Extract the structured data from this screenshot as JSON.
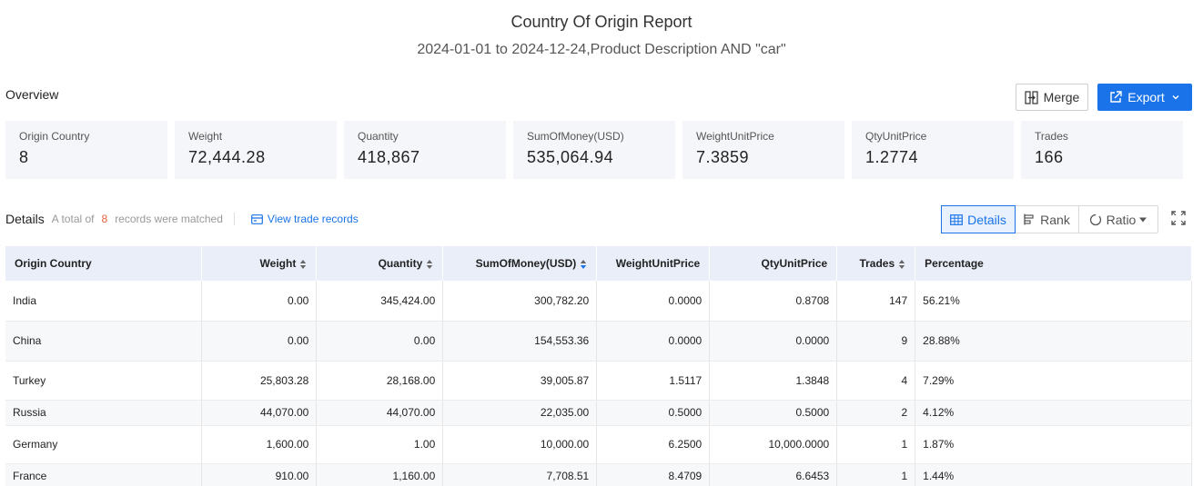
{
  "header": {
    "title": "Country Of Origin Report",
    "subtitle": "2024-01-01 to 2024-12-24,Product Description AND \"car\""
  },
  "overview": {
    "label": "Overview",
    "merge_label": "Merge",
    "export_label": "Export",
    "cards": [
      {
        "label": "Origin Country",
        "value": "8"
      },
      {
        "label": "Weight",
        "value": "72,444.28"
      },
      {
        "label": "Quantity",
        "value": "418,867"
      },
      {
        "label": "SumOfMoney(USD)",
        "value": "535,064.94"
      },
      {
        "label": "WeightUnitPrice",
        "value": "7.3859"
      },
      {
        "label": "QtyUnitPrice",
        "value": "1.2774"
      },
      {
        "label": "Trades",
        "value": "166"
      }
    ]
  },
  "details": {
    "title": "Details",
    "meta_prefix": "A total of",
    "count": "8",
    "meta_suffix": "records were matched",
    "view_link": "View trade records",
    "view_tabs": [
      "Details",
      "Rank",
      "Ratio"
    ]
  },
  "table": {
    "columns": [
      "Origin Country",
      "Weight",
      "Quantity",
      "SumOfMoney(USD)",
      "WeightUnitPrice",
      "QtyUnitPrice",
      "Trades",
      "Percentage"
    ],
    "rows": [
      [
        "India",
        "0.00",
        "345,424.00",
        "300,782.20",
        "0.0000",
        "0.8708",
        "147",
        "56.21%"
      ],
      [
        "China",
        "0.00",
        "0.00",
        "154,553.36",
        "0.0000",
        "0.0000",
        "9",
        "28.88%"
      ],
      [
        "Turkey",
        "25,803.28",
        "28,168.00",
        "39,005.87",
        "1.5117",
        "1.3848",
        "4",
        "7.29%"
      ],
      [
        "Russia",
        "44,070.00",
        "44,070.00",
        "22,035.00",
        "0.5000",
        "0.5000",
        "2",
        "4.12%"
      ],
      [
        "Germany",
        "1,600.00",
        "1.00",
        "10,000.00",
        "6.2500",
        "10,000.0000",
        "1",
        "1.87%"
      ],
      [
        "France",
        "910.00",
        "1,160.00",
        "7,708.51",
        "8.4709",
        "6.6453",
        "1",
        "1.44%"
      ]
    ]
  },
  "colors": {
    "accent": "#1a73e8",
    "count": "#e5623d",
    "header_bg": "#e9eef9",
    "card_bg": "#f5f6f9"
  }
}
